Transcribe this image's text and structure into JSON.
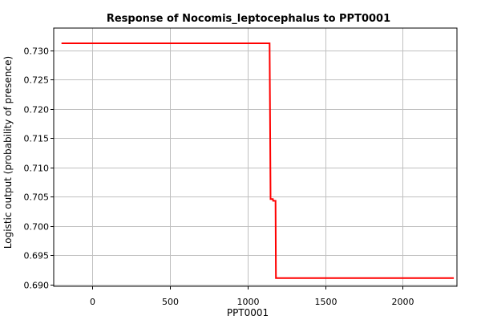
{
  "chart_data": {
    "type": "line",
    "title": "Response of Nocomis_leptocephalus to PPT0001",
    "xlabel": "PPT0001",
    "ylabel": "Logistic output (probability of presence)",
    "xlim": [
      -250,
      2350
    ],
    "ylim": [
      0.6897,
      0.7338
    ],
    "x_ticks": [
      0,
      500,
      1000,
      1500,
      2000
    ],
    "y_ticks": [
      0.69,
      0.695,
      0.7,
      0.705,
      0.71,
      0.715,
      0.72,
      0.725,
      0.73
    ],
    "grid": true,
    "series": [
      {
        "color": "#ff0000",
        "points": [
          [
            -200,
            0.7312
          ],
          [
            1142,
            0.7312
          ],
          [
            1148,
            0.7046
          ],
          [
            1163,
            0.7046
          ],
          [
            1165,
            0.7043
          ],
          [
            1180,
            0.7043
          ],
          [
            1183,
            0.6911
          ],
          [
            2330,
            0.6911
          ]
        ]
      }
    ]
  }
}
